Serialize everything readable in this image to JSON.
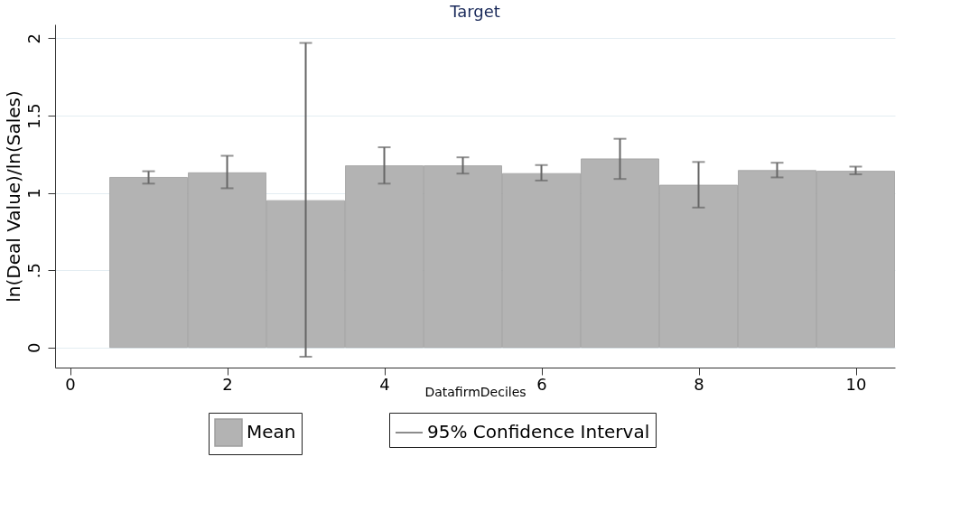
{
  "chart_data": {
    "type": "bar",
    "title": "Target",
    "xlabel": "DatafirmDeciles",
    "ylabel": "ln(Deal Value)/ln(Sales)",
    "x": [
      1,
      2,
      3,
      4,
      5,
      6,
      7,
      8,
      9,
      10
    ],
    "series": [
      {
        "name": "Mean",
        "color": "#b3b3b3",
        "values": [
          1.1,
          1.13,
          0.95,
          1.175,
          1.175,
          1.125,
          1.22,
          1.05,
          1.145,
          1.14
        ],
        "errors": [
          [
            1.06,
            1.14
          ],
          [
            1.03,
            1.24
          ],
          [
            -0.06,
            1.97
          ],
          [
            1.06,
            1.295
          ],
          [
            1.125,
            1.23
          ],
          [
            1.08,
            1.18
          ],
          [
            1.09,
            1.35
          ],
          [
            0.905,
            1.2
          ],
          [
            1.1,
            1.195
          ],
          [
            1.12,
            1.17
          ]
        ]
      }
    ],
    "annotations": [
      "95% Confidence Interval"
    ],
    "xlim": [
      -0.19,
      10.5
    ],
    "xticks": [
      0,
      2,
      4,
      6,
      8,
      10
    ],
    "ylim": [
      -0.13,
      2.09
    ],
    "yticks": [
      0,
      {
        "value": 0.5,
        "label": ".5"
      },
      1,
      1.5,
      2
    ],
    "grid": "y",
    "legend": "bottom"
  }
}
